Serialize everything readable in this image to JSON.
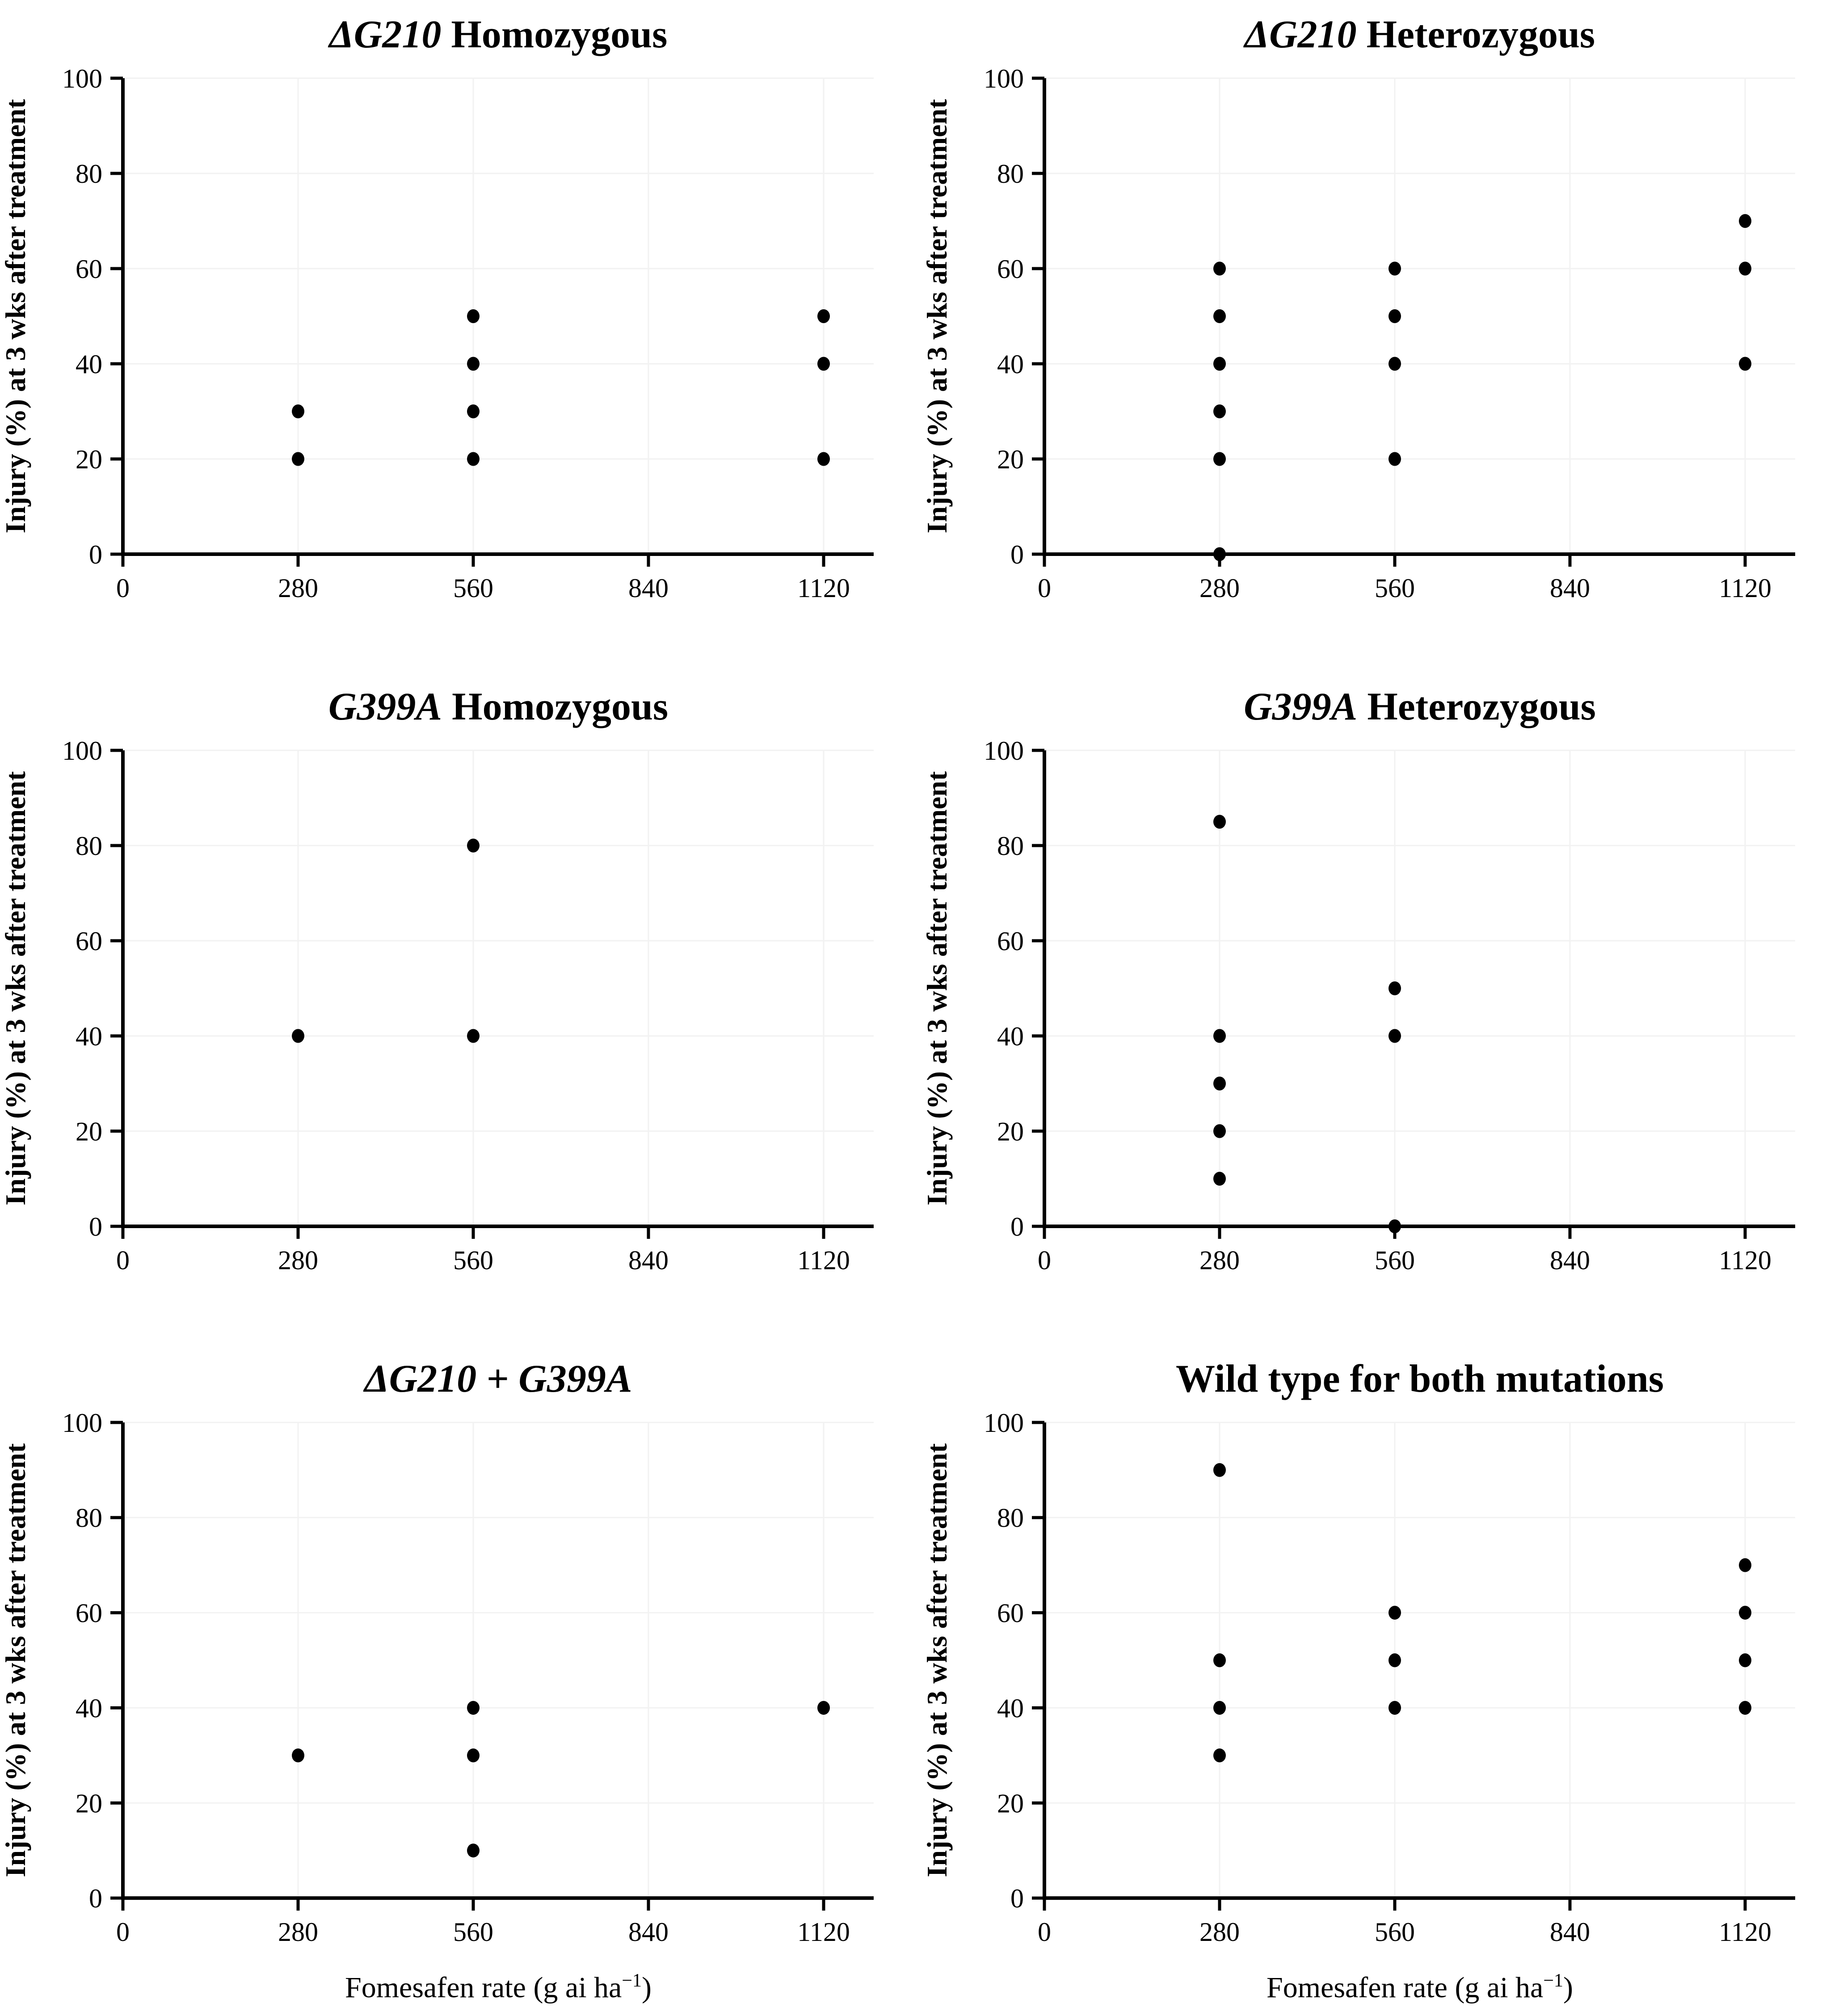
{
  "figure": {
    "background": "#ffffff",
    "axis_color": "#000000",
    "grid_color": "#f2f2f2",
    "point_color": "#000000",
    "shared_ylabel": "Injury (%) at 3 wks after treatment",
    "shared_xlabel": "Fomesafen rate (g ai ha⁻¹)"
  },
  "chart_data": [
    {
      "type": "scatter",
      "title": "ΔG210 Homozygous",
      "title_parts": [
        {
          "text": "ΔG210",
          "italic": true
        },
        {
          "text": " Homozygous",
          "italic": false
        }
      ],
      "xlabel": "",
      "ylabel": "Injury (%) at 3 wks after treatment",
      "xlim": [
        0,
        1200
      ],
      "ylim": [
        0,
        100
      ],
      "x_ticks": [
        0,
        280,
        560,
        840,
        1120
      ],
      "y_ticks": [
        0,
        20,
        40,
        60,
        80,
        100
      ],
      "grid": true,
      "legend": false,
      "points": [
        [
          280,
          20
        ],
        [
          280,
          30
        ],
        [
          560,
          20
        ],
        [
          560,
          30
        ],
        [
          560,
          40
        ],
        [
          560,
          50
        ],
        [
          1120,
          20
        ],
        [
          1120,
          40
        ],
        [
          1120,
          50
        ]
      ]
    },
    {
      "type": "scatter",
      "title": "ΔG210 Heterozygous",
      "title_parts": [
        {
          "text": "ΔG210",
          "italic": true
        },
        {
          "text": " Heterozygous",
          "italic": false
        }
      ],
      "xlabel": "",
      "ylabel": "Injury (%) at 3 wks after treatment",
      "xlim": [
        0,
        1200
      ],
      "ylim": [
        0,
        100
      ],
      "x_ticks": [
        0,
        280,
        560,
        840,
        1120
      ],
      "y_ticks": [
        0,
        20,
        40,
        60,
        80,
        100
      ],
      "grid": true,
      "legend": false,
      "points": [
        [
          280,
          0
        ],
        [
          280,
          20
        ],
        [
          280,
          30
        ],
        [
          280,
          40
        ],
        [
          280,
          50
        ],
        [
          280,
          60
        ],
        [
          560,
          20
        ],
        [
          560,
          40
        ],
        [
          560,
          50
        ],
        [
          560,
          60
        ],
        [
          1120,
          40
        ],
        [
          1120,
          60
        ],
        [
          1120,
          70
        ]
      ]
    },
    {
      "type": "scatter",
      "title": "G399A Homozygous",
      "title_parts": [
        {
          "text": "G399A",
          "italic": true
        },
        {
          "text": " Homozygous",
          "italic": false
        }
      ],
      "xlabel": "",
      "ylabel": "Injury (%) at 3 wks after treatment",
      "xlim": [
        0,
        1200
      ],
      "ylim": [
        0,
        100
      ],
      "x_ticks": [
        0,
        280,
        560,
        840,
        1120
      ],
      "y_ticks": [
        0,
        20,
        40,
        60,
        80,
        100
      ],
      "grid": true,
      "legend": false,
      "points": [
        [
          280,
          40
        ],
        [
          560,
          40
        ],
        [
          560,
          80
        ]
      ]
    },
    {
      "type": "scatter",
      "title": "G399A Heterozygous",
      "title_parts": [
        {
          "text": "G399A",
          "italic": true
        },
        {
          "text": " Heterozygous",
          "italic": false
        }
      ],
      "xlabel": "",
      "ylabel": "Injury (%) at 3 wks after treatment",
      "xlim": [
        0,
        1200
      ],
      "ylim": [
        0,
        100
      ],
      "x_ticks": [
        0,
        280,
        560,
        840,
        1120
      ],
      "y_ticks": [
        0,
        20,
        40,
        60,
        80,
        100
      ],
      "grid": true,
      "legend": false,
      "points": [
        [
          280,
          10
        ],
        [
          280,
          20
        ],
        [
          280,
          30
        ],
        [
          280,
          40
        ],
        [
          280,
          85
        ],
        [
          560,
          0
        ],
        [
          560,
          40
        ],
        [
          560,
          50
        ]
      ]
    },
    {
      "type": "scatter",
      "title": "ΔG210 + G399A",
      "title_parts": [
        {
          "text": "ΔG210 + G399A",
          "italic": true
        }
      ],
      "xlabel": "Fomesafen rate (g ai ha⁻¹)",
      "ylabel": "Injury (%) at 3 wks after treatment",
      "xlim": [
        0,
        1200
      ],
      "ylim": [
        0,
        100
      ],
      "x_ticks": [
        0,
        280,
        560,
        840,
        1120
      ],
      "y_ticks": [
        0,
        20,
        40,
        60,
        80,
        100
      ],
      "grid": true,
      "legend": false,
      "points": [
        [
          280,
          30
        ],
        [
          560,
          10
        ],
        [
          560,
          30
        ],
        [
          560,
          40
        ],
        [
          1120,
          40
        ]
      ]
    },
    {
      "type": "scatter",
      "title": "Wild type for both mutations",
      "title_parts": [
        {
          "text": "Wild type for both mutations",
          "italic": false
        }
      ],
      "xlabel": "Fomesafen rate (g ai ha⁻¹)",
      "ylabel": "Injury (%) at 3 wks after treatment",
      "xlim": [
        0,
        1200
      ],
      "ylim": [
        0,
        100
      ],
      "x_ticks": [
        0,
        280,
        560,
        840,
        1120
      ],
      "y_ticks": [
        0,
        20,
        40,
        60,
        80,
        100
      ],
      "grid": true,
      "legend": false,
      "points": [
        [
          280,
          30
        ],
        [
          280,
          40
        ],
        [
          280,
          50
        ],
        [
          280,
          90
        ],
        [
          560,
          40
        ],
        [
          560,
          50
        ],
        [
          560,
          60
        ],
        [
          1120,
          40
        ],
        [
          1120,
          50
        ],
        [
          1120,
          60
        ],
        [
          1120,
          70
        ]
      ]
    }
  ]
}
